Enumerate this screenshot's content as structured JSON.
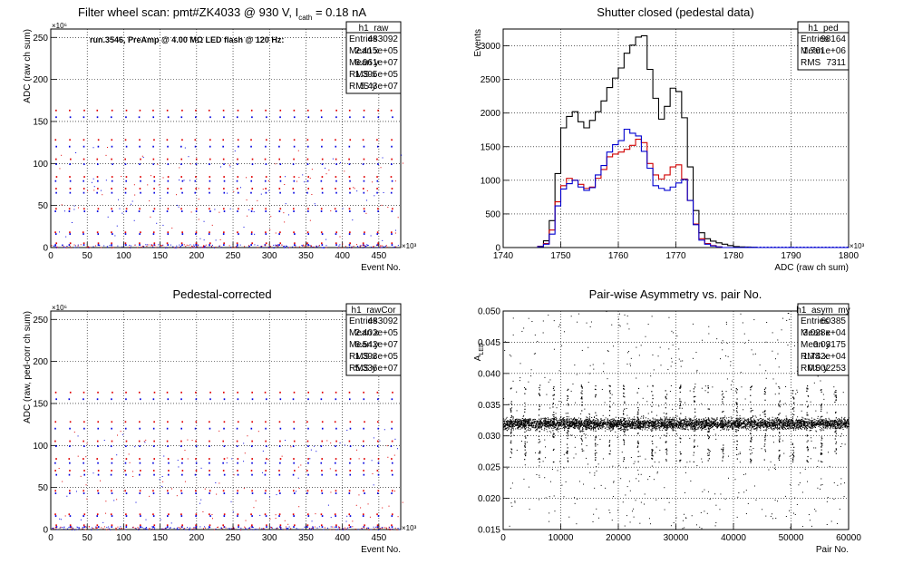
{
  "canvas": {
    "title": "ROOT canvas"
  },
  "chart_data": [
    {
      "id": "h1_raw",
      "type": "scatter",
      "title_parts": [
        "Filter wheel scan: pmt#ZK4033 @   930 V, I",
        "cath",
        " = 0.18 nA"
      ],
      "title": "Filter wheel scan: pmt#ZK4033 @   930 V, I cath = 0.18 nA",
      "annotation": "run.3546, PreAmp @ 4.00 MΩ LED flash @  120 Hz:",
      "xlabel": "Event No.",
      "ylabel": "ADC (raw ch sum)",
      "x_exponent": "×10³",
      "y_exponent": "×10⁶",
      "xlim": [
        0,
        480
      ],
      "ylim": [
        0,
        260
      ],
      "xticks": [
        0,
        50,
        100,
        150,
        200,
        250,
        300,
        350,
        400,
        450
      ],
      "yticks": [
        0,
        50,
        100,
        150,
        200,
        250
      ],
      "grid": true,
      "period": 19.2,
      "levels_red": [
        163,
        128,
        105,
        84,
        70,
        46,
        18,
        5
      ],
      "levels_blue": [
        155,
        120,
        99,
        79,
        65,
        43,
        16,
        3
      ],
      "series": [
        {
          "color": "#e00000"
        },
        {
          "color": "#0000e0"
        }
      ],
      "stats": {
        "name": "h1_raw",
        "rows": [
          [
            "Entries",
            "483092"
          ],
          [
            "Mean x",
            "2.415e+05"
          ],
          [
            "Mean y",
            "6.061e+07"
          ],
          [
            "RMS x",
            "1.395e+05"
          ],
          [
            "RMS y",
            "5.43e+07"
          ]
        ],
        "legend_position": "top-right"
      }
    },
    {
      "id": "h1_ped",
      "type": "line",
      "title": "Shutter closed (pedestal data)",
      "xlabel": "ADC (raw ch sum)",
      "ylabel": "Events",
      "x_exponent": "×10³",
      "xlim": [
        1740,
        1800
      ],
      "ylim": [
        0,
        3250
      ],
      "xticks": [
        1740,
        1750,
        1760,
        1770,
        1780,
        1790,
        1800
      ],
      "yticks": [
        0,
        500,
        1000,
        1500,
        2000,
        2500,
        3000
      ],
      "grid": true,
      "x": [
        1746,
        1747,
        1748,
        1749,
        1750,
        1751,
        1752,
        1753,
        1754,
        1755,
        1756,
        1757,
        1758,
        1759,
        1760,
        1761,
        1762,
        1763,
        1764,
        1765,
        1766,
        1767,
        1768,
        1769,
        1770,
        1771,
        1772,
        1773,
        1774,
        1775,
        1776,
        1777,
        1778,
        1779,
        1780,
        1781,
        1782,
        1783,
        1784,
        1785,
        1786,
        1787,
        1788,
        1789,
        1790,
        1791,
        1792,
        1793,
        1794,
        1795,
        1796,
        1797,
        1798,
        1799
      ],
      "series": [
        {
          "name": "black",
          "color": "#000000",
          "values": [
            20,
            100,
            400,
            1100,
            1780,
            1950,
            2020,
            1870,
            1780,
            1890,
            2020,
            2180,
            2380,
            2520,
            2670,
            2890,
            3010,
            3130,
            3150,
            2650,
            2220,
            1910,
            2100,
            2370,
            2320,
            1930,
            1200,
            550,
            220,
            130,
            95,
            70,
            50,
            30,
            15,
            10,
            8,
            5,
            0,
            0,
            0,
            0,
            0,
            0,
            0,
            0,
            0,
            0,
            0,
            0,
            0,
            0,
            0,
            0
          ]
        },
        {
          "name": "red",
          "color": "#d00000",
          "values": [
            20,
            60,
            260,
            680,
            920,
            1030,
            1000,
            940,
            880,
            900,
            1030,
            1160,
            1350,
            1390,
            1420,
            1460,
            1520,
            1610,
            1560,
            1250,
            1080,
            1020,
            1080,
            1200,
            1230,
            1020,
            700,
            350,
            130,
            60,
            30,
            10,
            0,
            0,
            0,
            0,
            0,
            0,
            0,
            0,
            0,
            0,
            0,
            0,
            0,
            0,
            0,
            0,
            0,
            0,
            0,
            0,
            0,
            0
          ]
        },
        {
          "name": "blue",
          "color": "#0000d0",
          "values": [
            15,
            50,
            200,
            620,
            870,
            950,
            1000,
            900,
            850,
            890,
            1080,
            1220,
            1420,
            1530,
            1590,
            1760,
            1700,
            1660,
            1430,
            1180,
            920,
            880,
            850,
            900,
            960,
            1010,
            700,
            340,
            110,
            50,
            25,
            10,
            0,
            0,
            0,
            0,
            0,
            0,
            0,
            0,
            0,
            0,
            0,
            0,
            0,
            0,
            0,
            0,
            0,
            0,
            0,
            0,
            0,
            0
          ]
        }
      ],
      "stats": {
        "name": "h1_ped",
        "rows": [
          [
            "Entries",
            "98164"
          ],
          [
            "Mean",
            "1.761e+06"
          ],
          [
            "RMS",
            "7311"
          ]
        ],
        "legend_position": "top-right"
      }
    },
    {
      "id": "h1_rawCor",
      "type": "scatter",
      "title": "Pedestal-corrected",
      "xlabel": "Event No.",
      "ylabel": "ADC (raw, ped-corr ch sum)",
      "x_exponent": "×10³",
      "y_exponent": "×10⁶",
      "xlim": [
        0,
        480
      ],
      "ylim": [
        0,
        260
      ],
      "xticks": [
        0,
        50,
        100,
        150,
        200,
        250,
        300,
        350,
        400,
        450
      ],
      "yticks": [
        0,
        50,
        100,
        150,
        200,
        250
      ],
      "grid": true,
      "period": 19.2,
      "levels_red": [
        163,
        128,
        105,
        84,
        70,
        46,
        18,
        5
      ],
      "levels_blue": [
        155,
        120,
        99,
        79,
        65,
        43,
        16,
        3
      ],
      "series": [
        {
          "color": "#e00000"
        },
        {
          "color": "#0000e0"
        }
      ],
      "stats": {
        "name": "h1_rawCor",
        "rows": [
          [
            "Entries",
            "483092"
          ],
          [
            "Mean x",
            "2.402e+05"
          ],
          [
            "Mean y",
            "6.542e+07"
          ],
          [
            "RMS x",
            "1.393e+05"
          ],
          [
            "RMS y",
            "5.336e+07"
          ]
        ],
        "legend_position": "top-right"
      }
    },
    {
      "id": "h1_asym_my",
      "type": "scatter",
      "title": "Pair-wise Asymmetry vs. pair No.",
      "xlabel": "Pair No.",
      "ylabel_parts": [
        "A",
        "LED"
      ],
      "ylabel": "A LED",
      "xlim": [
        0,
        60000
      ],
      "ylim": [
        0.015,
        0.05
      ],
      "xticks": [
        0,
        10000,
        20000,
        30000,
        40000,
        50000,
        60000
      ],
      "yticks": [
        0.015,
        0.02,
        0.025,
        0.03,
        0.035,
        0.04,
        0.045,
        0.05
      ],
      "grid": true,
      "band_center": 0.032,
      "band_halfwidth": 0.0012,
      "spike_period": 2450,
      "series": [
        {
          "color": "#000000"
        }
      ],
      "stats": {
        "name": "h1_asym_my",
        "rows": [
          [
            "Entries",
            "60385"
          ],
          [
            "Mean x",
            "3.028e+04"
          ],
          [
            "Mean y",
            "0.03175"
          ],
          [
            "RMS x",
            "1.742e+04"
          ],
          [
            "RMS y",
            "0.002253"
          ]
        ],
        "legend_position": "top-right"
      }
    }
  ]
}
